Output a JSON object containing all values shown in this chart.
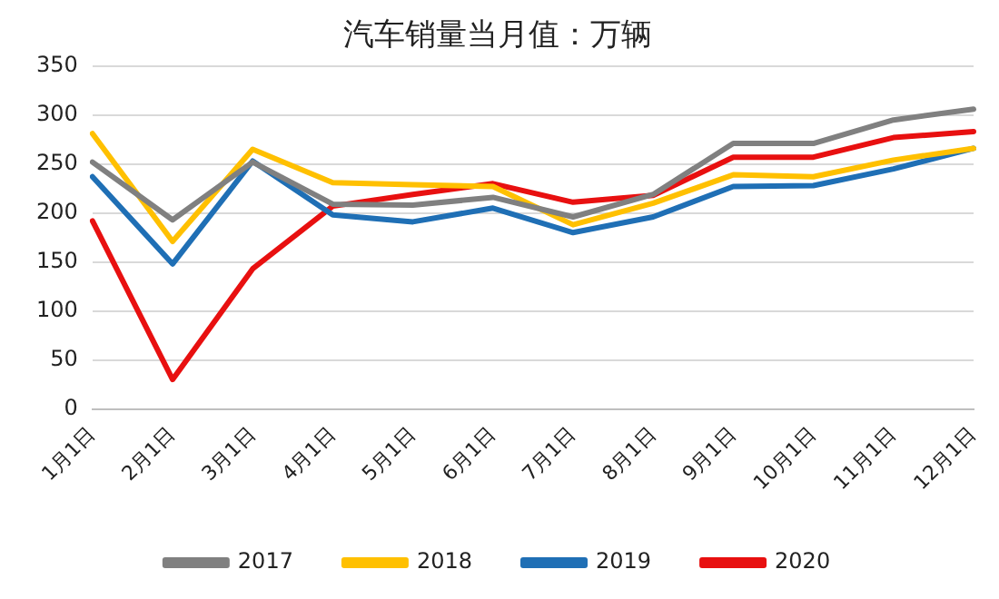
{
  "chart_data": {
    "type": "line",
    "title": "汽车销量当月值：万辆",
    "categories": [
      "1月1日",
      "2月1日",
      "3月1日",
      "4月1日",
      "5月1日",
      "6月1日",
      "7月1日",
      "8月1日",
      "9月1日",
      "10月1日",
      "11月1日",
      "12月1日"
    ],
    "series": [
      {
        "name": "2017",
        "color": "#808080",
        "values": [
          252,
          193,
          252,
          209,
          208,
          216,
          196,
          219,
          271,
          271,
          295,
          306
        ]
      },
      {
        "name": "2018",
        "color": "#ffc000",
        "values": [
          281,
          171,
          265,
          231,
          229,
          227,
          188,
          210,
          239,
          237,
          254,
          266
        ]
      },
      {
        "name": "2019",
        "color": "#1f6fb5",
        "values": [
          237,
          148,
          253,
          198,
          191,
          205,
          180,
          196,
          227,
          228,
          245,
          266
        ]
      },
      {
        "name": "2020",
        "color": "#e81010",
        "values": [
          192,
          30,
          143,
          207,
          219,
          230,
          211,
          218,
          257,
          257,
          277,
          283
        ]
      }
    ],
    "ylim": [
      0,
      350
    ],
    "yticks": [
      0,
      50,
      100,
      150,
      200,
      250,
      300,
      350
    ],
    "grid": "y",
    "legend": "bottom",
    "marker": "none",
    "line_style": "solid"
  }
}
